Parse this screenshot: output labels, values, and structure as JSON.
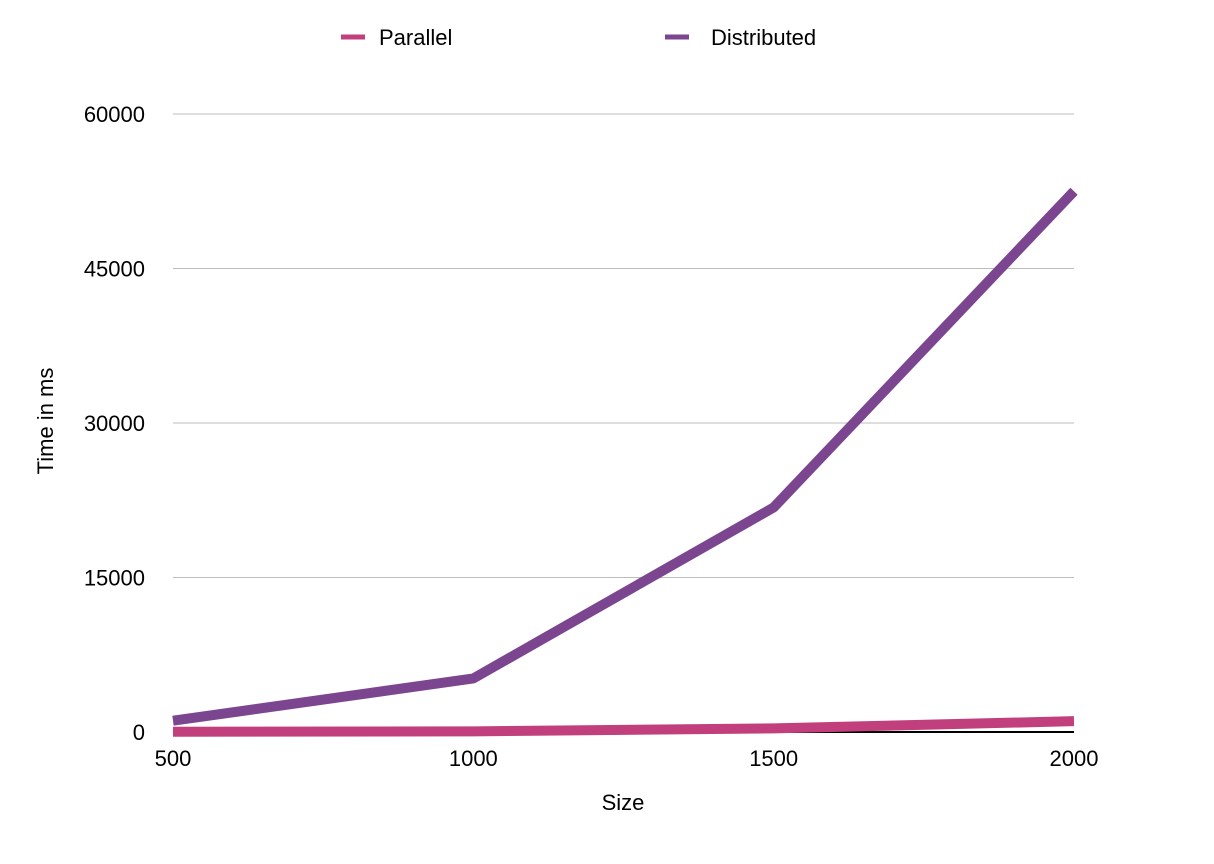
{
  "chart_data": {
    "type": "line",
    "title": "",
    "xlabel": "Size",
    "ylabel": "Time in ms",
    "x": [
      500,
      1000,
      1500,
      2000
    ],
    "x_tick_labels": [
      "500",
      "1000",
      "1500",
      "2000"
    ],
    "y_tick_labels": [
      "0",
      "15000",
      "30000",
      "45000",
      "60000"
    ],
    "y_ticks": [
      0,
      15000,
      30000,
      45000,
      60000
    ],
    "ylim": [
      0,
      60000
    ],
    "grid": true,
    "legend_position": "top-center",
    "series": [
      {
        "name": "Parallel",
        "color": "#c13f7c",
        "values": [
          20,
          60,
          350,
          1050
        ]
      },
      {
        "name": "Distributed",
        "color": "#7b4590",
        "values": [
          1100,
          5200,
          21800,
          52500
        ]
      }
    ]
  }
}
